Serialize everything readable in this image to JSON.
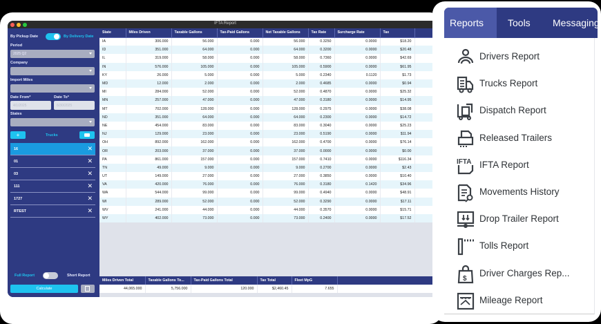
{
  "window": {
    "title": "IFTA Report"
  },
  "sidebar": {
    "date_mode": {
      "left_label": "By Pickup Date",
      "right_label": "By Delivery Date",
      "selected": "By Delivery Date"
    },
    "period": {
      "label": "Period",
      "value": "2025 Q2"
    },
    "company": {
      "label": "Company",
      "value": ""
    },
    "import_miles": {
      "label": "Import Miles",
      "value": ""
    },
    "date_from": {
      "label": "Date From*",
      "placeholder": "4/1/2025"
    },
    "date_to": {
      "label": "Date To*",
      "placeholder": "6/30/2025"
    },
    "states": {
      "label": "States",
      "value": ""
    },
    "trucks": {
      "add_label": "+",
      "title": "Trucks",
      "items": [
        {
          "label": "16",
          "active": true
        },
        {
          "label": "01"
        },
        {
          "label": "03"
        },
        {
          "label": "111"
        },
        {
          "label": "1727"
        },
        {
          "label": "RTEST"
        }
      ]
    },
    "report_mode": {
      "left_label": "Full Report",
      "right_label": "Short Report",
      "selected": "Full Report"
    },
    "calculate_label": "Calculate"
  },
  "table": {
    "columns": [
      "State",
      "Miles Driven",
      "Taxable Gallons",
      "Tax-Paid Gallons",
      "Net Taxable Gallons",
      "Tax Rate",
      "Surcharge Rate",
      "Tax"
    ],
    "rows": [
      [
        "IA",
        "306.000",
        "56.000",
        "0.000",
        "56.000",
        "0.3250",
        "0.0000",
        "$18.20"
      ],
      [
        "ID",
        "351.000",
        "64.000",
        "0.000",
        "64.000",
        "0.3200",
        "0.0000",
        "$20.48"
      ],
      [
        "IL",
        "319.000",
        "58.000",
        "0.000",
        "58.000",
        "0.7360",
        "0.0000",
        "$42.69"
      ],
      [
        "IN",
        "576.000",
        "105.000",
        "0.000",
        "105.000",
        "0.5900",
        "0.0000",
        "$61.95"
      ],
      [
        "KY",
        "26.000",
        "5.000",
        "0.000",
        "5.000",
        "0.2340",
        "0.1120",
        "$1.73"
      ],
      [
        "MD",
        "12.000",
        "2.000",
        "0.000",
        "2.000",
        "0.4685",
        "0.0000",
        "$0.94"
      ],
      [
        "MI",
        "284.000",
        "52.000",
        "0.000",
        "52.000",
        "0.4870",
        "0.0000",
        "$25.32"
      ],
      [
        "MN",
        "257.000",
        "47.000",
        "0.000",
        "47.000",
        "0.3180",
        "0.0000",
        "$14.95"
      ],
      [
        "MT",
        "702.000",
        "128.000",
        "0.000",
        "128.000",
        "0.2975",
        "0.0000",
        "$38.08"
      ],
      [
        "ND",
        "351.000",
        "64.000",
        "0.000",
        "64.000",
        "0.2300",
        "0.0000",
        "$14.72"
      ],
      [
        "NE",
        "454.000",
        "83.000",
        "0.000",
        "83.000",
        "0.3040",
        "0.0000",
        "$25.23"
      ],
      [
        "NJ",
        "129.000",
        "23.000",
        "0.000",
        "23.000",
        "0.5190",
        "0.0000",
        "$11.94"
      ],
      [
        "OH",
        "892.000",
        "162.000",
        "0.000",
        "162.000",
        "0.4700",
        "0.0000",
        "$76.14"
      ],
      [
        "OR",
        "203.000",
        "37.000",
        "0.000",
        "37.000",
        "0.0000",
        "0.0000",
        "$0.00"
      ],
      [
        "PA",
        "861.000",
        "157.000",
        "0.000",
        "157.000",
        "0.7410",
        "0.0000",
        "$116.34"
      ],
      [
        "TN",
        "49.000",
        "9.000",
        "0.000",
        "9.000",
        "0.2700",
        "0.0000",
        "$2.43"
      ],
      [
        "UT",
        "149.000",
        "27.000",
        "0.000",
        "27.000",
        "0.3850",
        "0.0000",
        "$10.40"
      ],
      [
        "VA",
        "420.000",
        "76.000",
        "0.000",
        "76.000",
        "0.3180",
        "0.1420",
        "$34.96"
      ],
      [
        "WA",
        "544.000",
        "99.000",
        "0.000",
        "99.000",
        "0.4940",
        "0.0000",
        "$48.91"
      ],
      [
        "WI",
        "289.000",
        "52.000",
        "0.000",
        "52.000",
        "0.3290",
        "0.0000",
        "$17.11"
      ],
      [
        "WV",
        "241.000",
        "44.000",
        "0.000",
        "44.000",
        "0.3570",
        "0.0000",
        "$15.71"
      ],
      [
        "WY",
        "402.000",
        "73.000",
        "0.000",
        "73.000",
        "0.2400",
        "0.0000",
        "$17.52"
      ]
    ]
  },
  "totals": {
    "columns": [
      "Miles Driven Total",
      "Taxable Gallons To...",
      "Tax-Paid Gallons Total",
      "Tax Total",
      "Fleet MpG"
    ],
    "values": [
      "44,065.000",
      "5,756.000",
      "120.000",
      "$2,460.45",
      "7.655"
    ]
  },
  "menu": {
    "tabs": [
      {
        "label": "Reports",
        "active": true
      },
      {
        "label": "Tools"
      },
      {
        "label": "Messaging"
      }
    ],
    "items": [
      {
        "label": "Drivers Report",
        "icon": "driver-icon"
      },
      {
        "label": "Trucks Report",
        "icon": "truck-icon"
      },
      {
        "label": "Dispatch Report",
        "icon": "dispatch-icon"
      },
      {
        "label": "Released Trailers",
        "icon": "trailer-icon"
      },
      {
        "label": "IFTA Report",
        "icon": "ifta-icon"
      },
      {
        "label": "Movements History",
        "icon": "history-icon"
      },
      {
        "label": "Drop Trailer Report",
        "icon": "drop-trailer-icon"
      },
      {
        "label": "Tolls Report",
        "icon": "tolls-icon"
      },
      {
        "label": "Driver Charges Rep...",
        "icon": "charges-icon"
      },
      {
        "label": "Mileage Report",
        "icon": "mileage-icon"
      }
    ]
  },
  "colors": {
    "navy": "#2e3a82",
    "accent": "#1ec3ef",
    "active_truck": "#1a9be0",
    "row_alt": "#e6f5fb"
  }
}
